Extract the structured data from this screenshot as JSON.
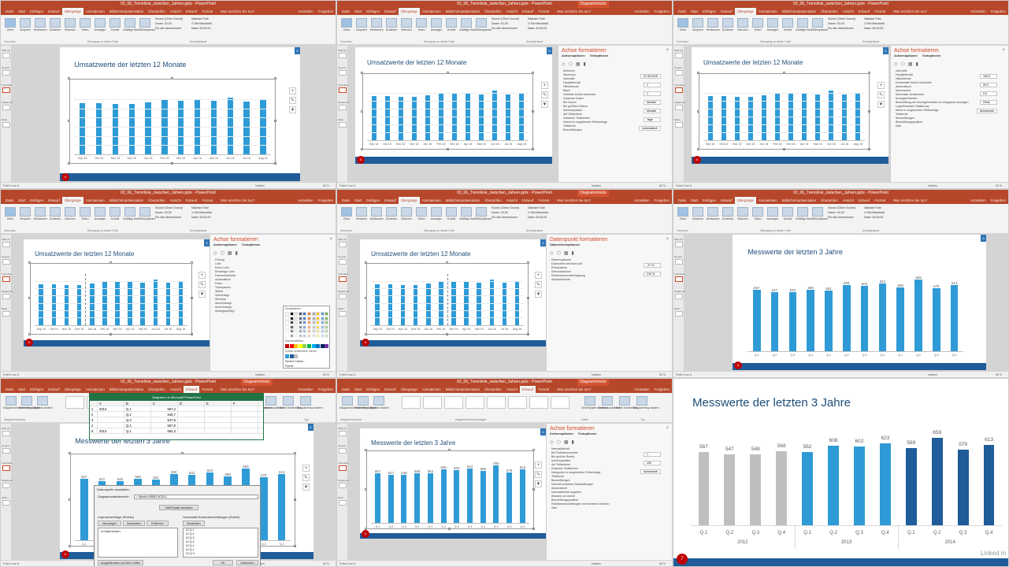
{
  "app": {
    "window_title": "02_06_Trennlinie_zwischen_Jahren.pptx - PowerPoint",
    "context_tab_group": "Diagrammtools",
    "signin": "Anmelden",
    "share": "Freigeben",
    "tell_me": "Was möchten Sie tun?"
  },
  "ribbon": {
    "tabs": [
      "Datei",
      "Start",
      "Einfügen",
      "Entwurf",
      "Übergänge",
      "Animationen",
      "Bildschirmpräsentation",
      "Überprüfen",
      "Ansicht",
      "Entwurf",
      "Format"
    ],
    "active_tab": "Übergänge",
    "buttons": [
      "Ohne",
      "Morphen",
      "Verblassen",
      "Schieben",
      "Wischen",
      "Teilen",
      "Anzeigen",
      "Schnitt",
      "Zufällige Ba...",
      "Effektoptionen"
    ],
    "group_labels": [
      "Vorschau",
      "Übergang zu dieser Folie",
      "Anzeigedauer"
    ],
    "sound_label": "Sound:",
    "sound_value": "[Ohne Sound]",
    "duration_label": "Dauer:",
    "duration_value": "02,00",
    "apply_all": "Für alle übernehmen",
    "next_slide": "Nächste Folie",
    "on_click": "Bei Mausklick",
    "after_label": "Nach:",
    "after_value": "00:00,00"
  },
  "design_ribbon": {
    "buttons": [
      "Diagrammelement hinzufügen",
      "Schnelllayout",
      "Farben ändern",
      "Zeile/Spalte wechseln",
      "Daten auswählen",
      "Daten bearbeiten",
      "Diagrammtyp ändern"
    ],
    "groups": [
      "Diagrammlayouts",
      "Diagrammformatvorlagen",
      "Daten",
      "Typ"
    ]
  },
  "sidebar": {
    "sections": [
      "Start (3)",
      "So geh...",
      "Trennlinie",
      "Zusammenfassung",
      "Dann..."
    ]
  },
  "status": {
    "slide_of": "Folie 5 von 6",
    "notes": "Notizen",
    "zoom": "50 %"
  },
  "format_pane": {
    "title": "Achse formatieren",
    "title_point": "Datenpunkt formatieren",
    "tabs": [
      "Achsenoptionen",
      "Textoptionen"
    ],
    "point_tabs": [
      "Datenreihenoptionen"
    ],
    "axis_lines": [
      "Minimum",
      "Maximum",
      "Intervalle",
      "Hauptintervall",
      "Hilfsintervall",
      "Basis",
      "Vertikale Achse schneidet:",
      "Zwischen Daten",
      "Bei Datum",
      "Bei größtem Datum",
      "Achsenposition",
      "Auf Teilstrichen",
      "Zwischen Teilstrichen",
      "Datum in umgekehrter Reihenfolge",
      "Teilstriche",
      "Beschriftungen"
    ],
    "axis_values": [
      "01.08.2015",
      "1",
      "1",
      "Monate",
      "Monate",
      "Tage",
      "Automatisch"
    ],
    "fill_lines": [
      "Füllung",
      "Linie",
      "Keine Linie",
      "Einfarbige Linie",
      "Farbverlaufslinie",
      "Automatisch",
      "Farbe",
      "Transparenz",
      "Stärke",
      "Verbundtyp",
      "Strichtyp",
      "Abschlusstyp",
      "Anschlusstyp",
      "Anfangspfeiltyp"
    ],
    "point_lines": [
      "Reihenoptionen",
      "Datenreihe zeichnen auf",
      "Primärachse",
      "Sekundärachse",
      "Reihenachsenüberlappung",
      "Abstandsbreite"
    ],
    "point_values": [
      "-27 %",
      "219 %"
    ],
    "intervals_lines": [
      "Intervalle",
      "Hauptintervall",
      "Hilfsintervall",
      "Horizontale Achse schneidet:",
      "Automatisch",
      "Achsenwert",
      "Maximaler Achsenwert",
      "Anzeigeeinheiten",
      "Beschriftung der Anzeigeeinheiten im Diagramm anzeigen",
      "Logarithmische Skalierung",
      "Werte in umgekehrter Reihenfolge",
      "Teilstriche",
      "Beschriftungen",
      "Beschriftungsposition",
      "Zahl"
    ],
    "intervals_values": [
      "100,0",
      "20,0",
      "0,0",
      "Ohne",
      "Achsennah"
    ],
    "label_lines": [
      "Intervalleinheit",
      "Bei Rubrikennummer",
      "Bei größter Rubrik",
      "Achsenposition",
      "Auf Teilstrichen",
      "Zwischen Teilstrichen",
      "Kategorien in umgekehrter Reihenfolge",
      "Teilstriche",
      "Beschriftungen",
      "Intervall zwischen Beschriftungen",
      "Automatisch",
      "Intervalleinheit angeben",
      "Abstand zur Achse",
      "Beschriftungsposition",
      "Rubrikenbeschriftungen mit mehreren Ebenen",
      "Zahl"
    ],
    "label_values": [
      "1",
      "100",
      "Achsennah"
    ]
  },
  "color_picker": {
    "theme_label": "Designfarben",
    "standard_label": "Standardfarben",
    "recent_label": "Zuletzt verwendete Farben",
    "more": "Weitere Farben...",
    "eyedropper": "Pipette"
  },
  "excel": {
    "title": "Diagramm in Microsoft PowerPoint",
    "cols": [
      "",
      "A",
      "B",
      "C",
      "D",
      "E",
      "F"
    ],
    "rows": [
      [
        "1",
        "2012",
        "Q.1",
        "567,2",
        "",
        "",
        ""
      ],
      [
        "2",
        "",
        "Q.2",
        "546,7",
        "",
        "",
        ""
      ],
      [
        "3",
        "",
        "Q.3",
        "547,6",
        "",
        "",
        ""
      ],
      [
        "4",
        "",
        "Q.4",
        "567,8",
        "",
        "",
        ""
      ],
      [
        "5",
        "2013",
        "Q.1",
        "562,3",
        "",
        "",
        ""
      ]
    ]
  },
  "data_dialog": {
    "title": "Datenquelle auswählen",
    "range_label": "Diagrammdatenbereich:",
    "range_value": "=Tabelle1!$B$1:$C$13",
    "switch": "Zeile/Spalte wechseln",
    "left_header": "Legendeneinträge (Reihen)",
    "right_header": "Horizontale Achsenbeschriftungen (Rubrik)",
    "add": "Hinzufügen",
    "edit": "Bearbeiten",
    "remove": "Entfernen",
    "edit2": "Bearbeiten",
    "series": "Datenreihe1",
    "cats": [
      "Q.1",
      "Q.2",
      "Q.3",
      "Q.4",
      "Q.1",
      "Q.2",
      "Q.3"
    ],
    "hidden": "Ausgeblendete und leere Zellen",
    "ok": "OK",
    "cancel": "Abbrechen"
  },
  "slides": {
    "monthly_title": "Umsatzwerte der letzten 12 Monate",
    "quarterly_title": "Messwerte der letzten 3 Jahre",
    "final_slide_number": "7",
    "linkedin": "Linked in"
  },
  "colors": {
    "accent": "#2e9bd6",
    "dark": "#1f5c99",
    "grey": "#bfbfbf",
    "brand": "#b7472a"
  },
  "chart_data": [
    {
      "type": "bar",
      "title": "Umsatzwerte der letzten 12 Monate",
      "categories": [
        "Sep 15",
        "Okt 15",
        "Nov 15",
        "Dez 15",
        "Jan 16",
        "Feb 16",
        "Mrz 16",
        "Apr 16",
        "Mai 16",
        "Jun 16",
        "Jul 16",
        "Aug 16"
      ],
      "values": [
        560,
        555,
        545,
        550,
        565,
        590,
        585,
        600,
        580,
        620,
        575,
        595
      ],
      "ylim": [
        0,
        700
      ]
    },
    {
      "type": "bar",
      "title": "Messwerte der letzten 3 Jahre",
      "categories": [
        "Q.1",
        "Q.2",
        "Q.3",
        "Q.4",
        "Q.1",
        "Q.2",
        "Q.3",
        "Q.4",
        "Q.1",
        "Q.2",
        "Q.3",
        "Q.4"
      ],
      "groups": [
        "2012",
        "2013",
        "2014"
      ],
      "values": [
        567,
        547,
        548,
        568,
        562,
        608,
        602,
        623,
        589,
        659,
        579,
        613
      ],
      "value_labels": [
        "567",
        "547",
        "548",
        "568",
        "562",
        "608",
        "602",
        "623",
        "589",
        "659",
        "579",
        "613"
      ],
      "ylim": [
        0,
        700
      ]
    }
  ]
}
